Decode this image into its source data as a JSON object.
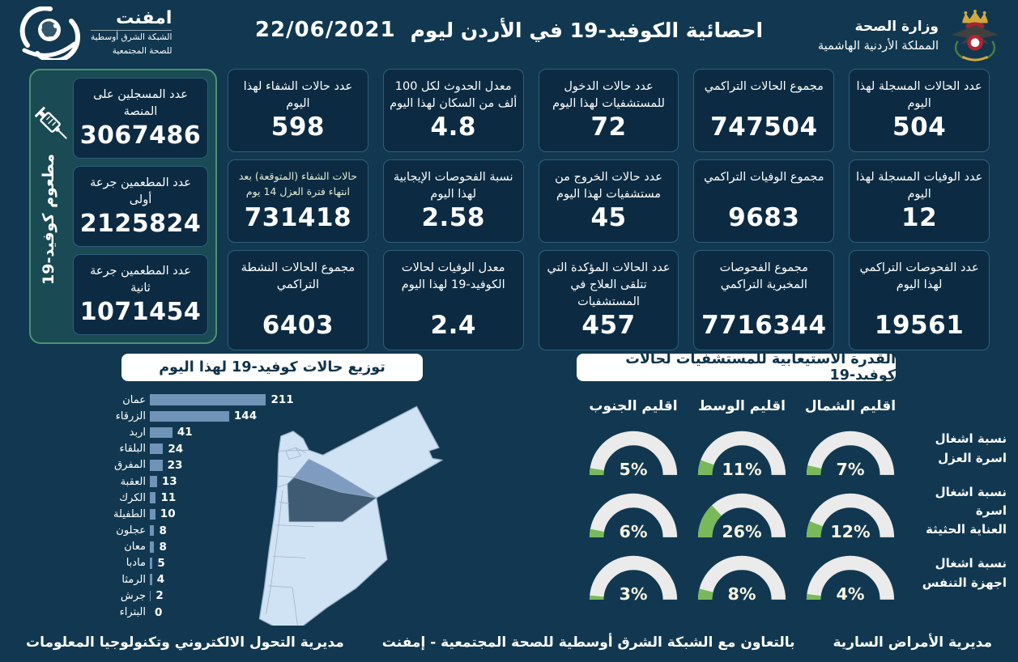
{
  "colors": {
    "background": "#113850",
    "card_background": "#0c2b42",
    "card_border": "#2f5d7c",
    "vaccine_panel_background": "#1a4a53",
    "vaccine_panel_border": "#4d9173",
    "badge_background": "#ffffff",
    "badge_text": "#0f3349",
    "bar_color": "#7093b8",
    "gauge_track": "#ebebeb",
    "gauge_fill": "#79b95b",
    "gauge_value_text": "#f8f4e3",
    "map_light": "#cfe3f4",
    "map_amman": "#3e5b73",
    "map_zarqa": "#7e9cc0"
  },
  "header": {
    "title": "احصائية الكوفيد-19 في الأردن ليوم",
    "date": "22/06/2021",
    "emphnet": {
      "name": "امفنت",
      "line1": "الشبكة الشرق أوسطية",
      "line2": "للصحة المجتمعية"
    },
    "ministry": {
      "line1": "وزارة الصحة",
      "line2": "المملكة الأردنية الهاشمية"
    }
  },
  "vaccine_panel": {
    "vertical_label": "مطعوم كوفيد-19",
    "cards": [
      {
        "label": "عدد المسجلين على المنصة",
        "value": "3067486"
      },
      {
        "label": "عدد المطعمين جرعة أولى",
        "value": "2125824"
      },
      {
        "label": "عدد المطعمين جرعة ثانية",
        "value": "1071454"
      }
    ]
  },
  "stat_cards": [
    {
      "label": "عدد الحالات المسجلة لهذا اليوم",
      "value": "504"
    },
    {
      "label": "مجموع الحالات التراكمي",
      "value": "747504"
    },
    {
      "label": "عدد حالات الدخول للمستشفيات لهذا اليوم",
      "value": "72"
    },
    {
      "label": "معدل الحدوث لكل 100 ألف من السكان لهذا اليوم",
      "value": "4.8"
    },
    {
      "label": "عدد حالات الشفاء لهذا اليوم",
      "value": "598"
    },
    {
      "label": "عدد الوفيات المسجلة لهذا اليوم",
      "value": "12"
    },
    {
      "label": "مجموع الوفيات التراكمي",
      "value": "9683"
    },
    {
      "label": "عدد حالات الخروج من مستشفيات لهذا اليوم",
      "value": "45"
    },
    {
      "label": "نسبة الفحوصات الإيجابية لهذا اليوم",
      "value": "2.58"
    },
    {
      "label": "حالات الشفاء (المتوقعة) بعد انتهاء فترة العزل 14 يوم",
      "value": "731418"
    },
    {
      "label": "عدد الفحوصات التراكمي لهذا اليوم",
      "value": "19561"
    },
    {
      "label": "مجموع الفحوصات المخبرية التراكمي",
      "value": "7716344"
    },
    {
      "label": "عدد الحالات المؤكدة التي تتلقى العلاج في المستشفيات",
      "value": "457"
    },
    {
      "label": "معدل الوفيات لحالات الكوفيد-19 لهذا اليوم",
      "value": "2.4"
    },
    {
      "label": "مجموع الحالات النشطة التراكمي",
      "value": "6403"
    }
  ],
  "footer": {
    "right": "مديرية الأمراض السارية",
    "center": "بالتعاون مع الشبكة الشرق أوسطية للصحة المجتمعية - إمفنت",
    "left": "مديرية التحول الالكتروني وتكنولوجيا المعلومات"
  },
  "chart_data": [
    {
      "type": "bar",
      "title": "توزيع حالات كوفيد-19 لهذا اليوم",
      "orientation": "horizontal",
      "categories": [
        "عمان",
        "الزرقاء",
        "اربد",
        "البلقاء",
        "المفرق",
        "العقبة",
        "الكرك",
        "الطفيلة",
        "عجلون",
        "معان",
        "مادبا",
        "الرمثا",
        "جرش",
        "البتراء"
      ],
      "values": [
        211,
        144,
        41,
        24,
        23,
        13,
        11,
        10,
        8,
        8,
        5,
        4,
        2,
        0
      ],
      "xlabel": "",
      "ylabel": "",
      "xlim": [
        0,
        220
      ],
      "grid": false,
      "bar_color": "#7093b8"
    },
    {
      "type": "gauge",
      "title": "القدرة الاستيعابية للمستشفيات لحالات كوفيد-19",
      "unit": "%",
      "range": [
        0,
        100
      ],
      "columns": [
        "اقليم الشمال",
        "اقليم الوسط",
        "اقليم الجنوب"
      ],
      "rows": [
        {
          "label": "نسبة اشغال اسرة العزل",
          "label_lines": [
            "نسبة اشغال",
            "اسرة العزل"
          ],
          "values": [
            7,
            11,
            5
          ]
        },
        {
          "label": "نسبة اشغال اسرة العناية الحثيثة",
          "label_lines": [
            "نسبة اشغال اسرة",
            "العناية الحثيثة"
          ],
          "values": [
            12,
            26,
            6
          ]
        },
        {
          "label": "نسبة اشغال اجهزة التنفس",
          "label_lines": [
            "نسبة اشغال",
            "اجهزة التنفس"
          ],
          "values": [
            4,
            8,
            3
          ]
        }
      ],
      "track_color": "#ebebeb",
      "fill_color": "#79b95b"
    }
  ]
}
